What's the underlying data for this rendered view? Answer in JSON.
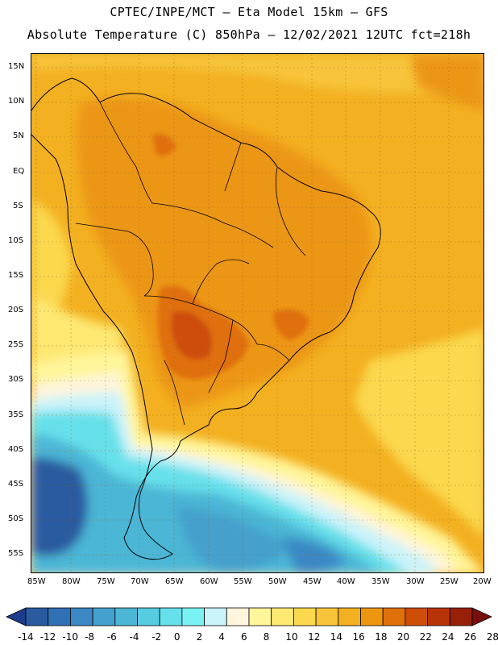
{
  "header": {
    "line1": "CPTEC/INPE/MCT –  Eta Model 15km – GFS",
    "line2": "Absolute Temperature (C) 850hPa – 12/02/2021 12UTC fct=218h"
  },
  "map": {
    "lat_labels": [
      "15N",
      "10N",
      "5N",
      "EQ",
      "5S",
      "10S",
      "15S",
      "20S",
      "25S",
      "30S",
      "35S",
      "40S",
      "45S",
      "50S",
      "55S"
    ],
    "lon_labels": [
      "85W",
      "80W",
      "75W",
      "70W",
      "65W",
      "60W",
      "55W",
      "50W",
      "45W",
      "40W",
      "35W",
      "30W",
      "25W",
      "20W"
    ]
  },
  "colorbar": {
    "labels": [
      "-14",
      "-12",
      "-10",
      "-8",
      "-6",
      "-4",
      "-2",
      "0",
      "2",
      "4",
      "6",
      "8",
      "10",
      "12",
      "14",
      "16",
      "18",
      "20",
      "22",
      "24",
      "26",
      "28"
    ],
    "colors": [
      "#1e3c8c",
      "#2a5aa0",
      "#3070b4",
      "#3b88c4",
      "#44a0cc",
      "#4bb6d6",
      "#55cce0",
      "#66e0ea",
      "#7af2f4",
      "#cbf3fa",
      "#fff5dc",
      "#fff59a",
      "#fde872",
      "#fbd84e",
      "#f7c43a",
      "#f3b020",
      "#ec9612",
      "#e0700a",
      "#ce4e08",
      "#b63408",
      "#982008",
      "#780e0e"
    ]
  }
}
